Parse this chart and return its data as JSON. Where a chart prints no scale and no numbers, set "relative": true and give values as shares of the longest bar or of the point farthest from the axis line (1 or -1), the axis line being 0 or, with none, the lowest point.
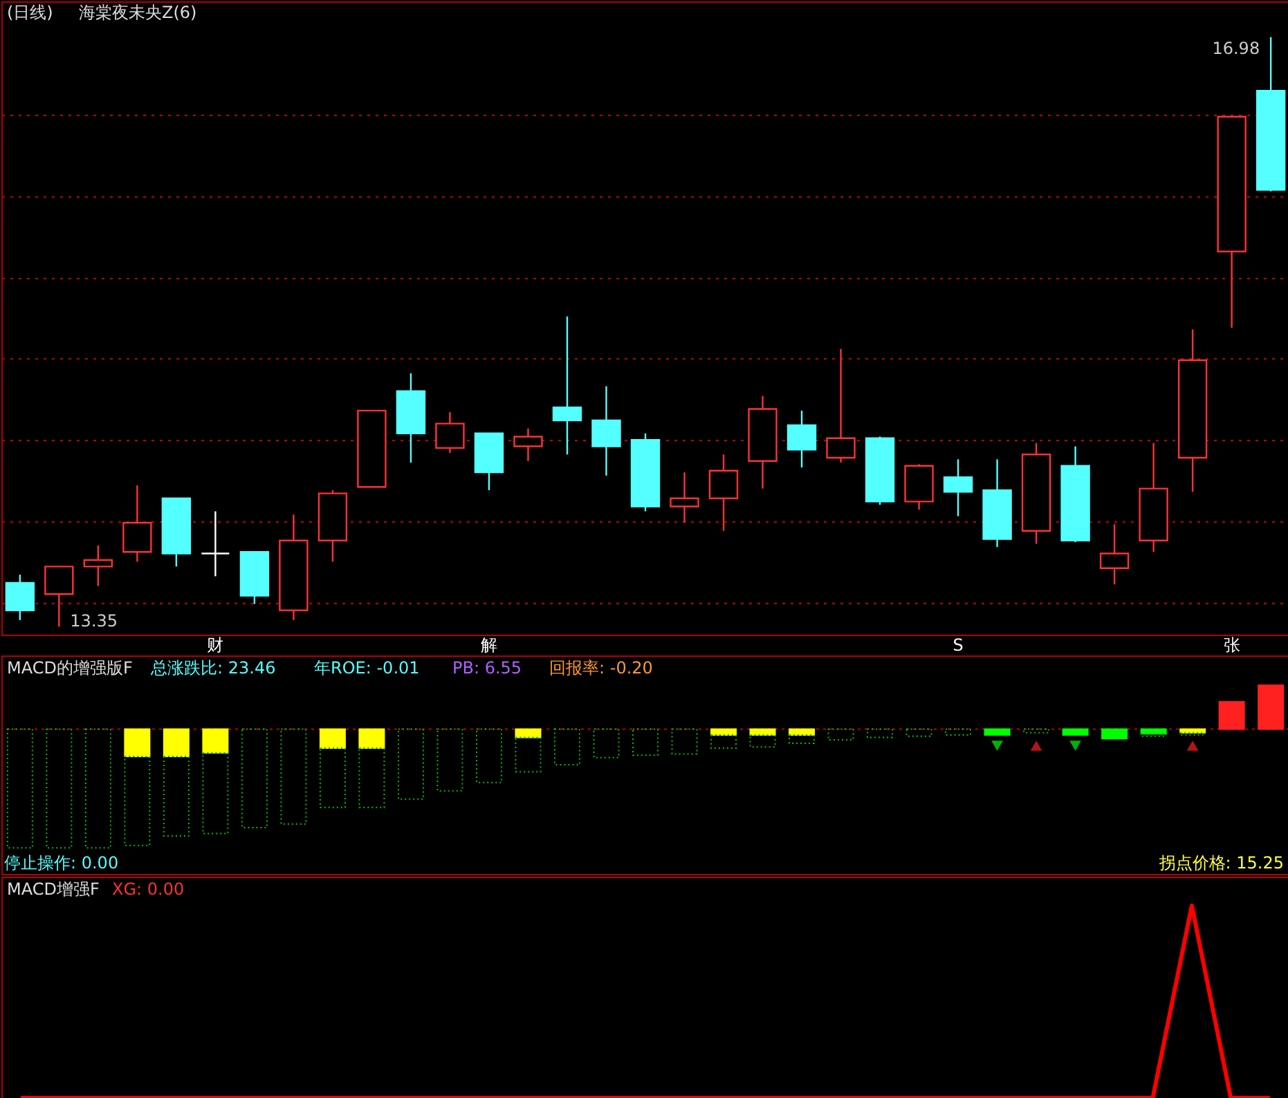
{
  "chart_data": [
    {
      "type": "candlestick",
      "title": "(日线)",
      "subtitle": "海棠夜未央Z(6)",
      "categories": [
        null,
        null,
        null,
        null,
        null,
        "财",
        null,
        null,
        null,
        null,
        null,
        null,
        "解",
        null,
        null,
        null,
        null,
        null,
        null,
        null,
        null,
        null,
        null,
        null,
        "S",
        null,
        null,
        null,
        null,
        null,
        null,
        "张",
        null
      ],
      "ohlc": [
        [
          13.62,
          13.67,
          13.39,
          13.45
        ],
        [
          13.55,
          13.72,
          13.35,
          13.72
        ],
        [
          13.72,
          13.85,
          13.6,
          13.76
        ],
        [
          13.81,
          14.22,
          13.75,
          13.99
        ],
        [
          14.14,
          14.14,
          13.72,
          13.8
        ],
        [
          13.8,
          14.06,
          13.66,
          13.8
        ],
        [
          13.81,
          13.81,
          13.49,
          13.54
        ],
        [
          13.45,
          14.04,
          13.39,
          13.88
        ],
        [
          13.88,
          14.19,
          13.75,
          14.17
        ],
        [
          14.21,
          14.68,
          14.21,
          14.68
        ],
        [
          14.8,
          14.91,
          14.36,
          14.54
        ],
        [
          14.45,
          14.67,
          14.42,
          14.6
        ],
        [
          14.54,
          14.54,
          14.19,
          14.3
        ],
        [
          14.46,
          14.57,
          14.37,
          14.52
        ],
        [
          14.7,
          15.26,
          14.41,
          14.62
        ],
        [
          14.62,
          14.83,
          14.28,
          14.46
        ],
        [
          14.5,
          14.54,
          14.06,
          14.09
        ],
        [
          14.09,
          14.3,
          13.99,
          14.14
        ],
        [
          14.14,
          14.41,
          13.94,
          14.31
        ],
        [
          14.37,
          14.77,
          14.2,
          14.69
        ],
        [
          14.59,
          14.68,
          14.33,
          14.44
        ],
        [
          14.39,
          15.06,
          14.36,
          14.51
        ],
        [
          14.51,
          14.52,
          14.1,
          14.12
        ],
        [
          14.12,
          14.35,
          14.07,
          14.34
        ],
        [
          14.27,
          14.38,
          14.03,
          14.18
        ],
        [
          14.19,
          14.38,
          13.84,
          13.89
        ],
        [
          13.94,
          14.48,
          13.86,
          14.41
        ],
        [
          14.34,
          14.46,
          13.87,
          13.88
        ],
        [
          13.71,
          13.98,
          13.61,
          13.8
        ],
        [
          13.88,
          14.48,
          13.81,
          14.2
        ],
        [
          14.39,
          15.18,
          14.18,
          14.99
        ],
        [
          15.66,
          16.49,
          15.19,
          16.49
        ],
        [
          16.65,
          16.98,
          16.03,
          16.04
        ]
      ],
      "ylim": [
        13.3,
        17.2
      ],
      "yticks": [
        {
          "value": 13.5,
          "label": null
        },
        {
          "value": 14,
          "label": null
        },
        {
          "value": 14.5,
          "label": null
        },
        {
          "value": 15,
          "label": null
        },
        {
          "value": 15.5,
          "label": null
        },
        {
          "value": 16,
          "label": null
        },
        {
          "value": 16.5,
          "label": null
        }
      ],
      "grid": "y",
      "tick_labels": "x",
      "annotations": [
        "13.35",
        "16.98"
      ]
    },
    {
      "type": "bar",
      "title": "MACD的增强版F",
      "relative": true,
      "stacked": true,
      "tick_labels": false,
      "categories": [
        null,
        null,
        null,
        null,
        null,
        null,
        null,
        null,
        null,
        null,
        null,
        null,
        null,
        null,
        null,
        null,
        null,
        null,
        null,
        null,
        null,
        null,
        null,
        null,
        null,
        null,
        null,
        null,
        null,
        null,
        null,
        null,
        null
      ],
      "series": [
        {
          "type": "bar",
          "colors": [
            null,
            null,
            null,
            "#ffff00",
            "#ffff00",
            "#ffff00",
            null,
            null,
            "#ffff00",
            "#ffff00",
            null,
            null,
            null,
            "#ffff00",
            null,
            null,
            null,
            null,
            "#ffff00",
            "#ffff00",
            "#ffff00",
            null,
            null,
            null,
            null,
            "#00ff00",
            null,
            "#00ff00",
            "#00ff00",
            "#00ff00",
            "#ffff00",
            null,
            null
          ],
          "values": [
            null,
            null,
            null,
            -0.23,
            -0.23,
            -0.2,
            null,
            null,
            -0.16,
            -0.16,
            null,
            null,
            null,
            -0.07,
            null,
            null,
            null,
            null,
            -0.05,
            -0.05,
            -0.05,
            null,
            null,
            null,
            null,
            -0.05,
            null,
            -0.05,
            -0.08,
            -0.04,
            -0.03,
            null,
            null
          ]
        },
        {
          "type": "bar",
          "color": "#00c000",
          "line_style": "dotted",
          "values": [
            -1,
            -1,
            -1,
            -0.75,
            -0.67,
            -0.68,
            -0.83,
            -0.8,
            -0.5,
            -0.5,
            -0.59,
            -0.52,
            -0.45,
            -0.29,
            -0.3,
            -0.24,
            -0.22,
            -0.21,
            -0.11,
            -0.1,
            -0.07,
            -0.09,
            -0.07,
            -0.06,
            -0.05,
            null,
            -0.03,
            null,
            null,
            -0.02,
            -0.02,
            null,
            null
          ]
        },
        {
          "type": "bar",
          "color": "#ff2020",
          "values": [
            null,
            null,
            null,
            null,
            null,
            null,
            null,
            null,
            null,
            null,
            null,
            null,
            null,
            null,
            null,
            null,
            null,
            null,
            null,
            null,
            null,
            null,
            null,
            null,
            null,
            null,
            null,
            null,
            null,
            null,
            null,
            0.23,
            0.37
          ]
        },
        {
          "type": "scatter",
          "color": "#00ff00",
          "marker": "triangle-down",
          "values": [
            null,
            null,
            null,
            null,
            null,
            null,
            null,
            null,
            null,
            null,
            null,
            null,
            null,
            null,
            null,
            null,
            null,
            null,
            null,
            null,
            null,
            null,
            null,
            null,
            null,
            -0.14,
            null,
            -0.14,
            null,
            null,
            null,
            null,
            null
          ]
        },
        {
          "type": "scatter",
          "color": "#ff2020",
          "marker": "triangle",
          "values": [
            null,
            null,
            null,
            null,
            null,
            null,
            null,
            null,
            null,
            null,
            null,
            null,
            null,
            null,
            null,
            null,
            null,
            null,
            null,
            null,
            null,
            null,
            null,
            null,
            null,
            null,
            -0.14,
            null,
            null,
            null,
            -0.14,
            null,
            null
          ]
        }
      ],
      "ref_lines": [
        {
          "axis": "y",
          "value": 0,
          "color": "#c00000",
          "line_style": "dotted"
        }
      ],
      "annotations": [
        "总涨跌比: 23.46",
        "年ROE: -0.01",
        "PB: 6.55",
        "回报率: -0.20",
        "停止操作: 0.00",
        "拐点价格: 15.25"
      ]
    },
    {
      "type": "line",
      "title": "MACD增强F",
      "relative": true,
      "tick_labels": false,
      "categories": [
        null,
        null,
        null,
        null,
        null,
        null,
        null,
        null,
        null,
        null,
        null,
        null,
        null,
        null,
        null,
        null,
        null,
        null,
        null,
        null,
        null,
        null,
        null,
        null,
        null,
        null,
        null,
        null,
        null,
        null,
        null,
        null,
        null
      ],
      "series": [
        {
          "type": "line",
          "color": "#ff0000",
          "values": [
            0,
            0,
            0,
            0,
            0,
            0,
            0,
            0,
            0,
            0,
            0,
            0,
            0,
            0,
            0,
            0,
            0,
            0,
            0,
            0,
            0,
            0,
            0,
            0,
            0,
            0,
            0,
            0,
            0,
            0,
            1,
            0,
            0
          ]
        }
      ],
      "annotations": [
        "XG: 0.00"
      ]
    }
  ]
}
